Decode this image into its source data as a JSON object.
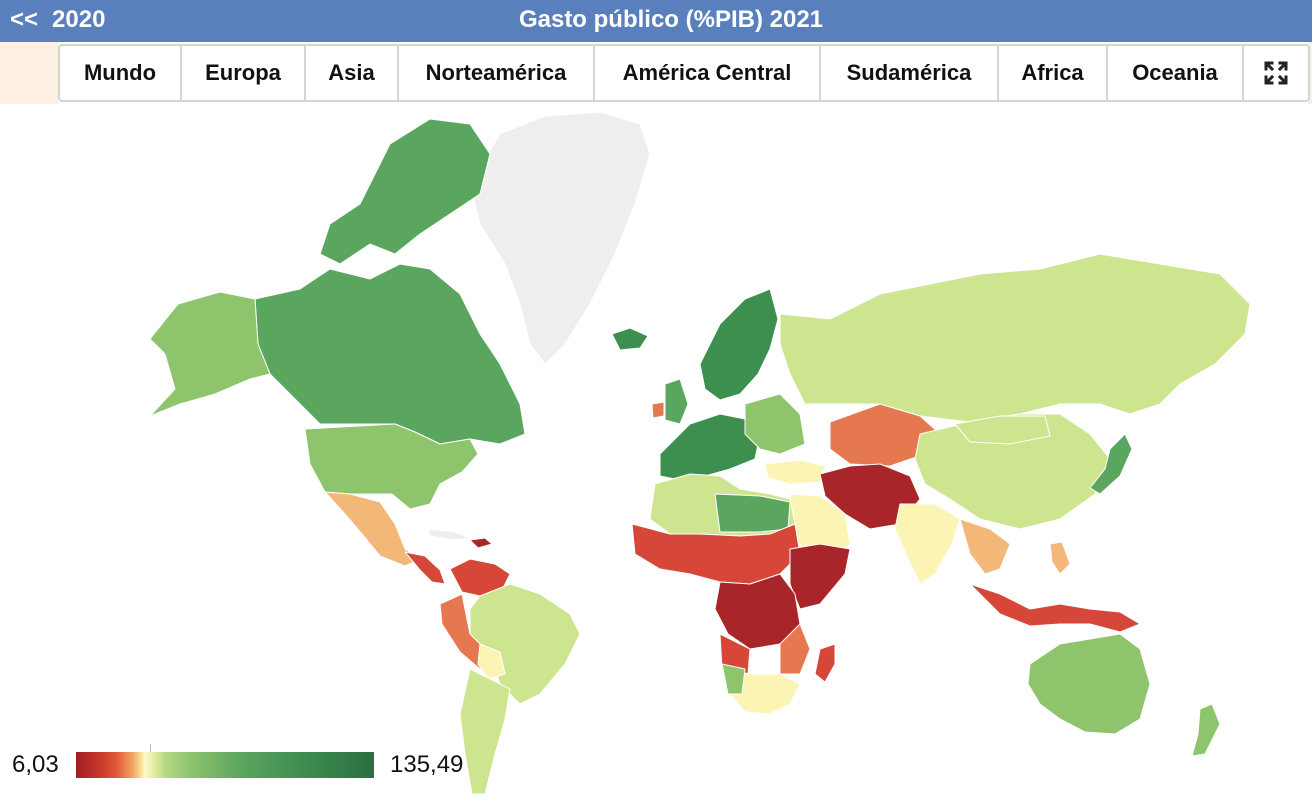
{
  "header": {
    "prev_arrow": "<<",
    "prev_year": "2020",
    "title": "Gasto público (%PIB) 2021"
  },
  "tabs": [
    "Mundo",
    "Europa",
    "Asia",
    "Norteamérica",
    "América Central",
    "Sudamérica",
    "Africa",
    "Oceania"
  ],
  "fullscreen_icon": "expand-icon",
  "legend": {
    "min": "6,03",
    "max": "135,49"
  },
  "colors": {
    "header_bg": "#5a7fbd",
    "dark_green": "#3c8f4f",
    "mid_green": "#6aaa5e",
    "light_green": "#8ec46b",
    "pale_green": "#cde58f",
    "cream": "#fbf4b5",
    "orange_light": "#f3b878",
    "orange": "#e5784e",
    "red": "#d6473a",
    "dark_red": "#a8262a",
    "no_data": "#eeeeee"
  }
}
